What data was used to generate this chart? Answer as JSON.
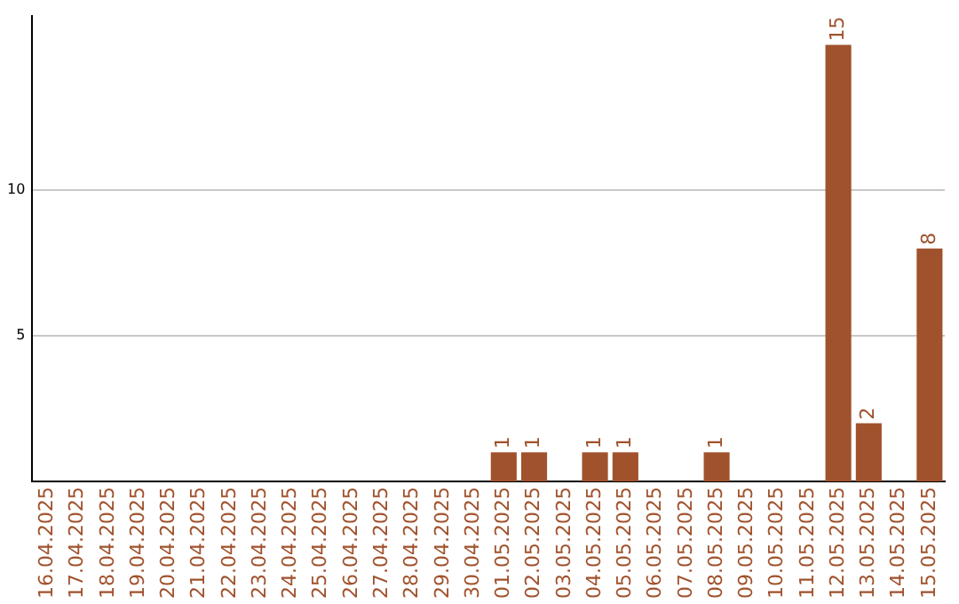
{
  "chart_data": {
    "type": "bar",
    "categories": [
      "16.04.2025",
      "17.04.2025",
      "18.04.2025",
      "19.04.2025",
      "20.04.2025",
      "21.04.2025",
      "22.04.2025",
      "23.04.2025",
      "24.04.2025",
      "25.04.2025",
      "26.04.2025",
      "27.04.2025",
      "28.04.2025",
      "29.04.2025",
      "30.04.2025",
      "01.05.2025",
      "02.05.2025",
      "03.05.2025",
      "04.05.2025",
      "05.05.2025",
      "06.05.2025",
      "07.05.2025",
      "08.05.2025",
      "09.05.2025",
      "10.05.2025",
      "11.05.2025",
      "12.05.2025",
      "13.05.2025",
      "14.05.2025",
      "15.05.2025"
    ],
    "values": [
      null,
      null,
      null,
      null,
      null,
      null,
      null,
      null,
      null,
      null,
      null,
      null,
      null,
      null,
      null,
      1,
      1,
      null,
      1,
      1,
      null,
      null,
      1,
      null,
      null,
      null,
      15,
      2,
      null,
      8
    ],
    "color": "#a0522d",
    "ylim": [
      0,
      16
    ],
    "yticks": [
      5,
      10
    ],
    "grid": "y",
    "data_labels": true,
    "legend": false
  }
}
